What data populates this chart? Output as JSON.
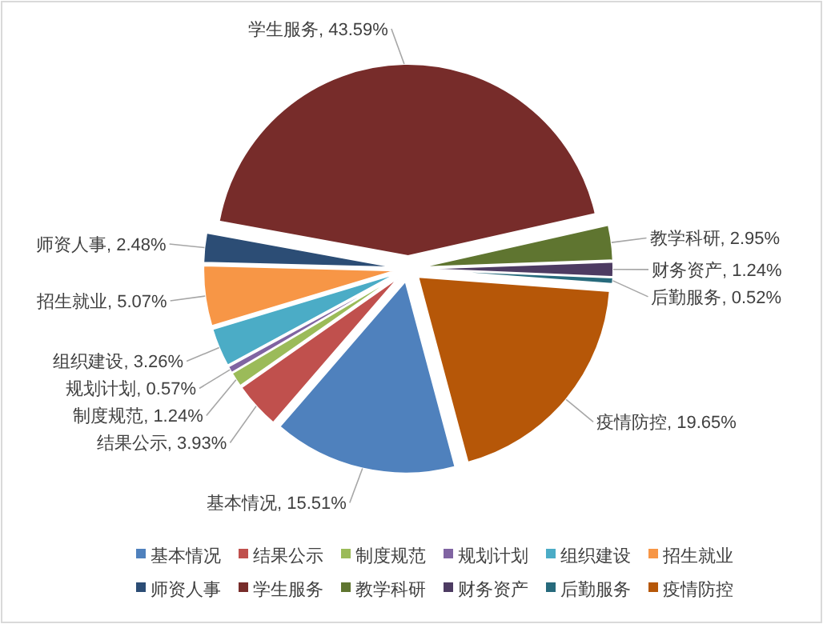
{
  "chart_data": {
    "type": "pie",
    "categories": [
      "基本情况",
      "结果公示",
      "制度规范",
      "规划计划",
      "组织建设",
      "招生就业",
      "师资人事",
      "学生服务",
      "教学科研",
      "财务资产",
      "后勤服务",
      "疫情防控"
    ],
    "values": [
      15.51,
      3.93,
      1.24,
      0.57,
      3.26,
      5.07,
      2.48,
      43.59,
      2.95,
      1.24,
      0.52,
      19.65
    ],
    "value_labels": [
      "基本情况, 15.51%",
      "结果公示, 3.93%",
      "制度规范, 1.24%",
      "规划计划, 0.57%",
      "组织建设, 3.26%",
      "招生就业, 5.07%",
      "师资人事, 2.48%",
      "学生服务, 43.59%",
      "教学科研, 2.95%",
      "财务资产, 1.24%",
      "后勤服务, 0.52%",
      "疫情防控, 19.65%"
    ],
    "colors": [
      "#4f81bd",
      "#c0504d",
      "#9bbb59",
      "#8064a2",
      "#4bacc6",
      "#f79646",
      "#2c4d75",
      "#772c2a",
      "#5f7530",
      "#4d3b62",
      "#276a7c",
      "#b65708"
    ],
    "legend": "bottom"
  }
}
